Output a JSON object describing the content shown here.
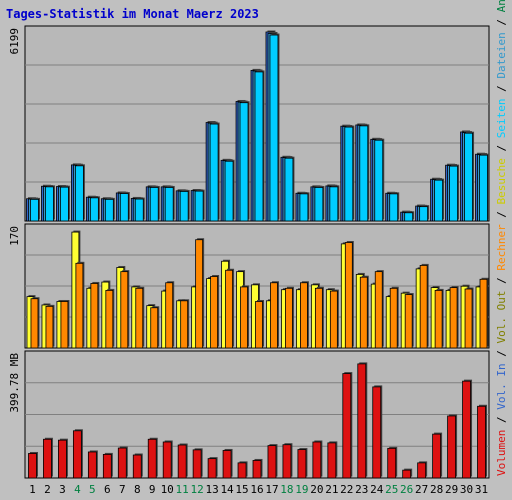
{
  "colors": {
    "background": "#c0c0c0",
    "panel": "#b8b8b8",
    "grid": "#808080",
    "title": "#0000cc",
    "anfragen": "#3366cc",
    "dateien": "#3399cc",
    "seiten": "#00ccff",
    "besuche": "#ffff33",
    "rechner": "#ff8800",
    "volumen": "#dd1111",
    "weekday_label": "#000000",
    "weekend_label": "#008040"
  },
  "chart_data": [
    {
      "type": "bar",
      "title": "Tages-Statistik im Monat Maerz 2023",
      "ymax_label": "6199",
      "ymax": 6199,
      "grid": true,
      "categories": [
        "1",
        "2",
        "3",
        "4",
        "5",
        "6",
        "7",
        "8",
        "9",
        "10",
        "11",
        "12",
        "13",
        "14",
        "15",
        "16",
        "17",
        "18",
        "19",
        "20",
        "21",
        "22",
        "23",
        "24",
        "25",
        "26",
        "27",
        "28",
        "29",
        "30",
        "31"
      ],
      "weekend_categories": [
        "4",
        "5",
        "11",
        "12",
        "18",
        "19",
        "25",
        "26"
      ],
      "series": [
        {
          "name": "Anfragen",
          "color": "#3366cc",
          "values": [
            730,
            1140,
            1130,
            1840,
            780,
            730,
            920,
            740,
            1120,
            1120,
            990,
            1000,
            3230,
            1990,
            3920,
            4940,
            6199,
            2090,
            910,
            1120,
            1150,
            3110,
            3150,
            2680,
            910,
            290,
            490,
            1370,
            1830,
            2920,
            2190
          ]
        },
        {
          "name": "Dateien",
          "color": "#3399cc",
          "values": [
            720,
            1130,
            1120,
            1830,
            770,
            720,
            910,
            730,
            1110,
            1110,
            980,
            990,
            3210,
            1980,
            3900,
            4920,
            6150,
            2080,
            900,
            1110,
            1140,
            3100,
            3140,
            2670,
            900,
            280,
            480,
            1360,
            1820,
            2900,
            2180
          ]
        },
        {
          "name": "Seiten",
          "color": "#00ccff",
          "values": [
            710,
            1120,
            1110,
            1810,
            760,
            710,
            900,
            720,
            1100,
            1100,
            970,
            980,
            3180,
            1960,
            3880,
            4890,
            6100,
            2060,
            890,
            1100,
            1120,
            3080,
            3120,
            2650,
            890,
            270,
            470,
            1340,
            1800,
            2880,
            2160
          ]
        }
      ]
    },
    {
      "type": "bar",
      "ymax_label": "170",
      "ymax": 170,
      "grid": true,
      "categories": [
        "1",
        "2",
        "3",
        "4",
        "5",
        "6",
        "7",
        "8",
        "9",
        "10",
        "11",
        "12",
        "13",
        "14",
        "15",
        "16",
        "17",
        "18",
        "19",
        "20",
        "21",
        "22",
        "23",
        "24",
        "25",
        "26",
        "27",
        "28",
        "29",
        "30",
        "31"
      ],
      "series": [
        {
          "name": "Besuche",
          "color": "#ffff33",
          "values": [
            74,
            62,
            67,
            167,
            86,
            95,
            116,
            88,
            61,
            82,
            68,
            88,
            100,
            125,
            110,
            91,
            68,
            84,
            84,
            91,
            84,
            150,
            106,
            92,
            74,
            79,
            114,
            87,
            83,
            89,
            88
          ]
        },
        {
          "name": "Rechner",
          "color": "#ff8800",
          "values": [
            71,
            60,
            67,
            122,
            93,
            83,
            110,
            86,
            58,
            94,
            68,
            156,
            103,
            112,
            88,
            67,
            94,
            86,
            94,
            86,
            82,
            152,
            102,
            110,
            86,
            77,
            119,
            83,
            87,
            85,
            99
          ]
        }
      ]
    },
    {
      "type": "bar",
      "ymax_label": "399.78 MB",
      "ymax": 399.78,
      "grid": true,
      "categories": [
        "1",
        "2",
        "3",
        "4",
        "5",
        "6",
        "7",
        "8",
        "9",
        "10",
        "11",
        "12",
        "13",
        "14",
        "15",
        "16",
        "17",
        "18",
        "19",
        "20",
        "21",
        "22",
        "23",
        "24",
        "25",
        "26",
        "27",
        "28",
        "29",
        "30",
        "31"
      ],
      "series": [
        {
          "name": "Volumen",
          "color": "#dd1111",
          "values": [
            81,
            128,
            125,
            156,
            86,
            78,
            99,
            76,
            128,
            119,
            109,
            93,
            64,
            91,
            50,
            58,
            107,
            110,
            94,
            119,
            116,
            345,
            377,
            301,
            98,
            26,
            50,
            145,
            205,
            320,
            237
          ]
        }
      ]
    }
  ],
  "side_legend": [
    {
      "text": "Volumen",
      "color": "#dd1111"
    },
    {
      "text": " / ",
      "color": "#000000"
    },
    {
      "text": "Vol. In",
      "color": "#3366cc"
    },
    {
      "text": " / ",
      "color": "#000000"
    },
    {
      "text": "Vol. Out",
      "color": "#808000"
    },
    {
      "text": " / ",
      "color": "#000000"
    },
    {
      "text": "Rechner",
      "color": "#ff8800"
    },
    {
      "text": " / ",
      "color": "#000000"
    },
    {
      "text": "Besuche",
      "color": "#cccc00"
    },
    {
      "text": " / ",
      "color": "#000000"
    },
    {
      "text": "Seiten",
      "color": "#00ccff"
    },
    {
      "text": " / ",
      "color": "#000000"
    },
    {
      "text": "Dateien",
      "color": "#3399cc"
    },
    {
      "text": " / ",
      "color": "#000000"
    },
    {
      "text": "Anfragen",
      "color": "#008040"
    }
  ]
}
